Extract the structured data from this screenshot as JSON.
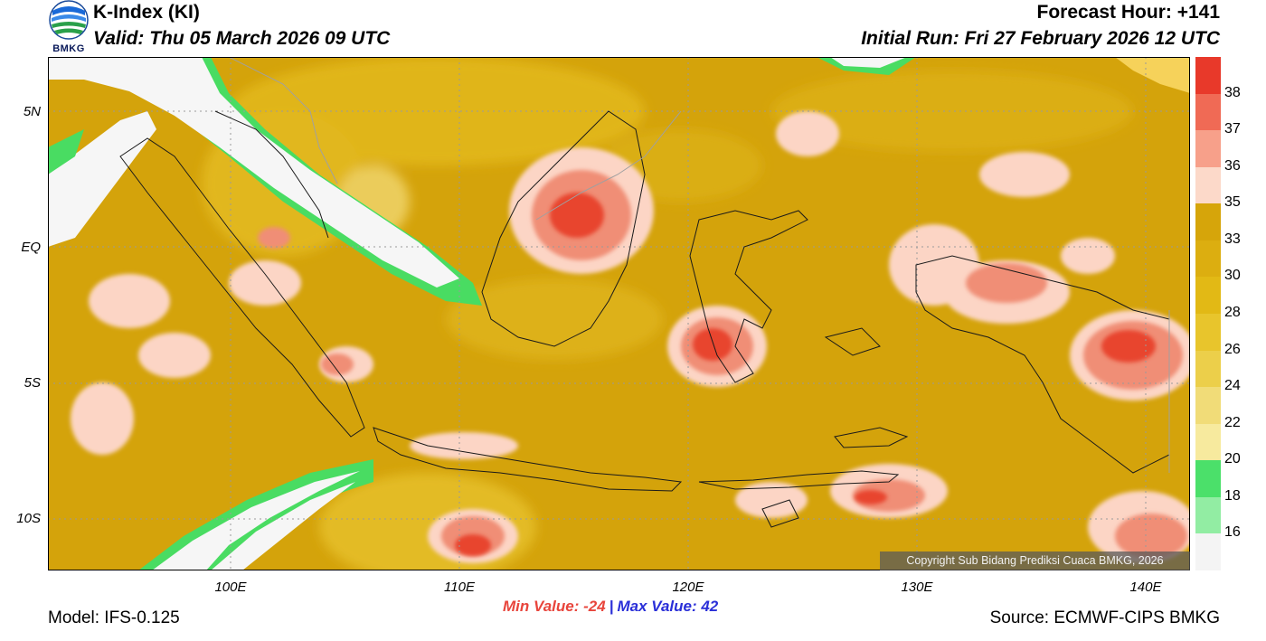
{
  "header": {
    "title": "K-Index (KI)",
    "valid": "Valid: Thu 05 March 2026 09 UTC",
    "forecast_hour": "Forecast Hour: +141",
    "initial_run": "Initial Run: Fri 27 February 2026 12 UTC"
  },
  "logo": {
    "text": "BMKG",
    "icon": "bmkg-logo-icon"
  },
  "map": {
    "lat_labels": [
      "5N",
      "EQ",
      "5S",
      "10S"
    ],
    "lon_labels": [
      "100E",
      "110E",
      "120E",
      "130E",
      "140E"
    ]
  },
  "colorbar": {
    "labels": [
      "38",
      "37",
      "36",
      "35",
      "33",
      "30",
      "28",
      "26",
      "24",
      "22",
      "20",
      "18",
      "16"
    ],
    "colors": [
      "#e8392a",
      "#f06a55",
      "#f7a08a",
      "#fcd9c9",
      "#d6a50a",
      "#dcae10",
      "#e2b915",
      "#e8c52c",
      "#eccf4a",
      "#f1dc78",
      "#f7ea9e",
      "#4be06a",
      "#92eda3",
      "#f4f4f4"
    ]
  },
  "stats": {
    "min": "Min Value: -24",
    "separator": "|",
    "max": "Max Value:  42"
  },
  "footer": {
    "model": "Model: IFS-0.125",
    "source": "Source: ECMWF-CIPS BMKG",
    "copyright": "Copyright Sub Bidang Prediksi Cuaca BMKG, 2026"
  }
}
